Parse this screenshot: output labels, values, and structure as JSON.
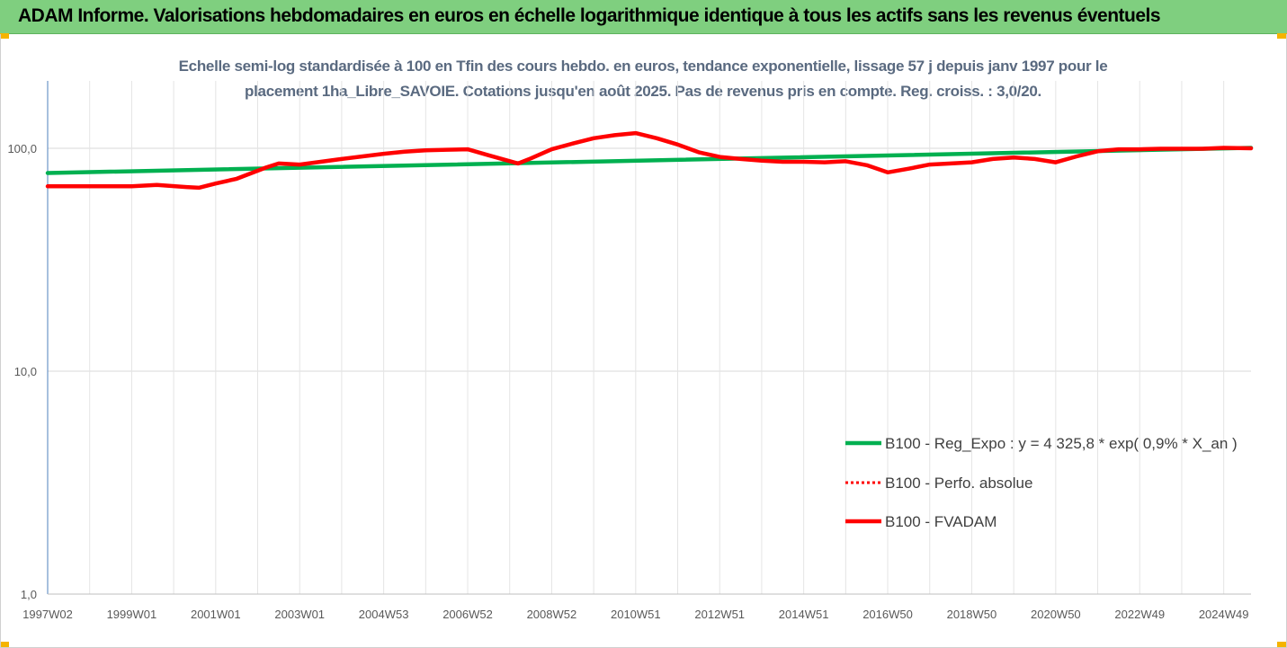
{
  "header": {
    "title": "ADAM Informe. Valorisations hebdomadaires en euros en échelle logarithmique identique à tous les actifs sans les revenus éventuels",
    "background_color": "#7fcf7f",
    "corner_color": "#f5b400"
  },
  "chart_data": {
    "type": "line",
    "title_lines": [
      "Echelle semi-log standardisée à 100 en Tfin des cours hebdo. en euros, tendance exponentielle, lissage 57 j depuis janv 1997 pour le",
      "placement 1ha_Libre_SAVOIE. Cotations jusqu'en août 2025. Pas de revenus pris en compte. Reg. croiss. : 3,0/20."
    ],
    "y_scale": "log",
    "ylim": [
      1,
      200
    ],
    "y_ticks": [
      {
        "value": 1,
        "label": "1,0"
      },
      {
        "value": 10,
        "label": "10,0"
      },
      {
        "value": 100,
        "label": "100,0"
      }
    ],
    "x_range": [
      1997.0,
      2025.65
    ],
    "x_tick_labels": [
      {
        "x": 1997.0,
        "label": "1997W02"
      },
      {
        "x": 1999.0,
        "label": "1999W01"
      },
      {
        "x": 2001.0,
        "label": "2001W01"
      },
      {
        "x": 2003.0,
        "label": "2003W01"
      },
      {
        "x": 2005.0,
        "label": "2004W53"
      },
      {
        "x": 2007.0,
        "label": "2006W52"
      },
      {
        "x": 2009.0,
        "label": "2008W52"
      },
      {
        "x": 2011.0,
        "label": "2010W51"
      },
      {
        "x": 2013.0,
        "label": "2012W51"
      },
      {
        "x": 2015.0,
        "label": "2014W51"
      },
      {
        "x": 2017.0,
        "label": "2016W50"
      },
      {
        "x": 2019.0,
        "label": "2018W50"
      },
      {
        "x": 2021.0,
        "label": "2020W50"
      },
      {
        "x": 2023.0,
        "label": "2022W49"
      },
      {
        "x": 2025.0,
        "label": "2024W49"
      }
    ],
    "grid": true,
    "legend_position": "bottom-right",
    "series": [
      {
        "name": "B100 - Reg_Expo : y = 4 325,8 * exp( 0,9% *  X_an )",
        "color": "#00b050",
        "style": "solid",
        "x": [
          1997.0,
          2025.65
        ],
        "values": [
          77.5,
          100.5
        ]
      },
      {
        "name": "B100 - Perfo. absolue",
        "color": "#ff0000",
        "style": "dotted",
        "x": [],
        "values": []
      },
      {
        "name": "B100 - FVADAM",
        "color": "#ff0000",
        "style": "solid",
        "x": [
          1997.0,
          1999.0,
          1999.6,
          2000.3,
          2000.6,
          2001.0,
          2001.5,
          2002.2,
          2002.5,
          2003.0,
          2003.5,
          2004.0,
          2004.5,
          2005.0,
          2005.5,
          2006.0,
          2006.5,
          2007.0,
          2007.5,
          2008.2,
          2008.5,
          2009.0,
          2009.5,
          2010.0,
          2010.5,
          2011.0,
          2011.5,
          2012.0,
          2012.5,
          2013.0,
          2013.5,
          2014.0,
          2014.5,
          2015.0,
          2015.5,
          2016.0,
          2016.5,
          2017.0,
          2017.5,
          2018.0,
          2018.5,
          2019.0,
          2019.5,
          2020.0,
          2020.5,
          2021.0,
          2021.5,
          2022.0,
          2022.5,
          2023.0,
          2023.5,
          2024.0,
          2024.5,
          2025.0,
          2025.65
        ],
        "values": [
          67.5,
          67.5,
          68.5,
          67.0,
          66.5,
          69.5,
          73.0,
          82.0,
          85.5,
          84.5,
          87.0,
          89.5,
          92.0,
          94.5,
          96.5,
          98.0,
          98.5,
          99.0,
          93.0,
          85.5,
          90.0,
          99.0,
          105.0,
          111.0,
          114.5,
          117.0,
          111.0,
          104.0,
          96.0,
          91.5,
          89.5,
          88.0,
          87.0,
          87.0,
          86.5,
          87.5,
          84.0,
          78.0,
          81.0,
          84.5,
          85.5,
          86.5,
          89.5,
          91.0,
          89.5,
          86.5,
          92.0,
          97.0,
          99.0,
          99.0,
          99.5,
          99.5,
          99.5,
          100.5,
          100.0
        ]
      }
    ]
  }
}
